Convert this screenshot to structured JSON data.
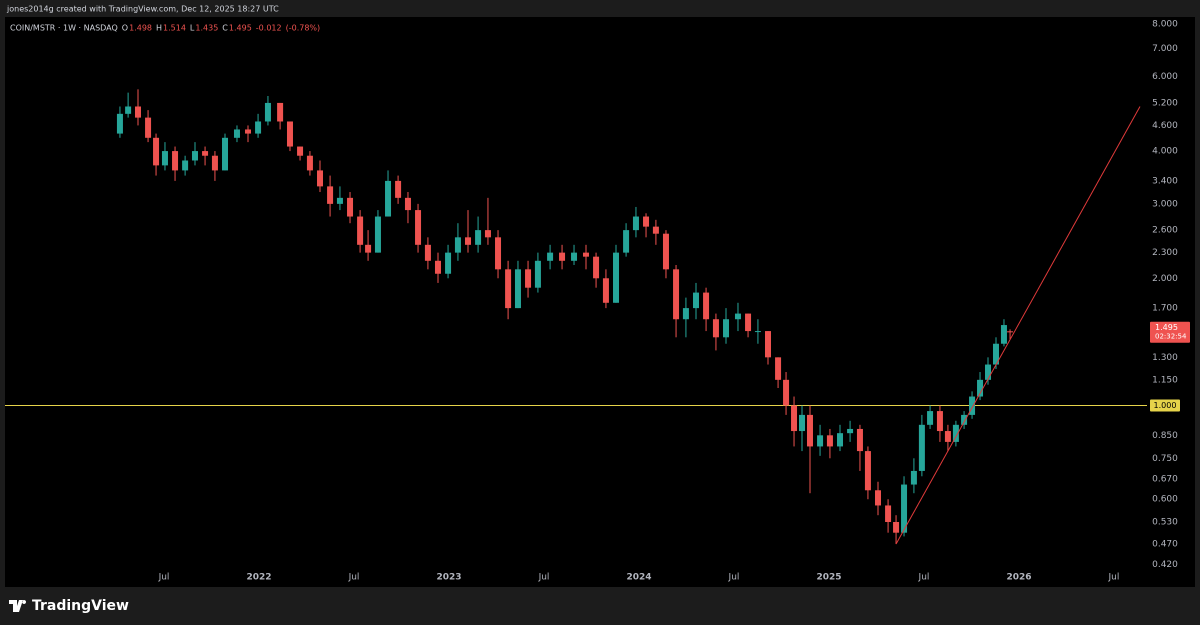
{
  "header": {
    "credit": "jones2014g created with TradingView.com, Dec 12, 2025 18:27 UTC",
    "symbol": "COIN/MSTR · 1W · NASDAQ",
    "o_label": "O",
    "h_label": "H",
    "l_label": "L",
    "c_label": "C",
    "change": "-0.012",
    "change_pct": "(-0.78%)",
    "countdown": "02:32:54"
  },
  "footer": {
    "brand": "TradingView"
  },
  "chart_data": {
    "type": "candlestick",
    "log_scale": true,
    "up_color": "#26a69a",
    "down_color": "#ef5350",
    "x": [
      2021.268,
      2021.311,
      2021.363,
      2021.416,
      2021.458,
      2021.505,
      2021.558,
      2021.611,
      2021.663,
      2021.716,
      2021.768,
      2021.821,
      2021.884,
      2021.942,
      2021.995,
      2022.047,
      2022.111,
      2022.163,
      2022.216,
      2022.268,
      2022.321,
      2022.374,
      2022.426,
      2022.479,
      2022.532,
      2022.574,
      2022.626,
      2022.679,
      2022.732,
      2022.784,
      2022.837,
      2022.889,
      2022.942,
      2022.995,
      2023.047,
      2023.1,
      2023.153,
      2023.205,
      2023.258,
      2023.311,
      2023.363,
      2023.416,
      2023.468,
      2023.532,
      2023.595,
      2023.658,
      2023.721,
      2023.774,
      2023.826,
      2023.879,
      2023.932,
      2023.984,
      2024.037,
      2024.089,
      2024.142,
      2024.195,
      2024.247,
      2024.3,
      2024.353,
      2024.405,
      2024.458,
      2024.521,
      2024.574,
      2024.626,
      2024.679,
      2024.732,
      2024.774,
      2024.816,
      2024.858,
      2024.9,
      2024.953,
      2025.005,
      2025.058,
      2025.111,
      2025.163,
      2025.205,
      2025.258,
      2025.311,
      2025.353,
      2025.395,
      2025.447,
      2025.489,
      2025.532,
      2025.584,
      2025.626,
      2025.668,
      2025.711,
      2025.753,
      2025.795,
      2025.837,
      2025.879,
      2025.921,
      2025.953
    ],
    "open": [
      4.4,
      4.9,
      5.1,
      4.8,
      4.3,
      3.7,
      4.0,
      3.6,
      3.8,
      4.0,
      3.9,
      3.6,
      4.3,
      4.5,
      4.4,
      4.7,
      5.2,
      4.7,
      4.1,
      3.9,
      3.6,
      3.3,
      3.0,
      3.1,
      2.8,
      2.4,
      2.3,
      2.8,
      3.4,
      3.1,
      2.9,
      2.4,
      2.2,
      2.05,
      2.3,
      2.5,
      2.4,
      2.6,
      2.5,
      2.1,
      1.7,
      2.1,
      1.9,
      2.2,
      2.3,
      2.2,
      2.3,
      2.25,
      2.0,
      1.75,
      2.3,
      2.6,
      2.8,
      2.65,
      2.55,
      2.1,
      1.6,
      1.7,
      1.85,
      1.6,
      1.45,
      1.6,
      1.65,
      1.5,
      1.5,
      1.3,
      1.15,
      1.0,
      0.87,
      0.95,
      0.8,
      0.85,
      0.8,
      0.86,
      0.88,
      0.78,
      0.63,
      0.58,
      0.53,
      0.5,
      0.65,
      0.7,
      0.9,
      0.97,
      0.87,
      0.82,
      0.9,
      0.95,
      1.05,
      1.15,
      1.25,
      1.4,
      1.498
    ],
    "high": [
      5.1,
      5.5,
      5.6,
      5.0,
      4.4,
      4.2,
      4.1,
      3.9,
      4.2,
      4.1,
      4.0,
      4.4,
      4.6,
      4.6,
      4.9,
      5.4,
      5.2,
      4.7,
      4.1,
      4.0,
      3.8,
      3.5,
      3.3,
      3.2,
      2.9,
      2.6,
      2.9,
      3.6,
      3.5,
      3.2,
      3.0,
      2.5,
      2.3,
      2.4,
      2.7,
      2.9,
      2.8,
      3.1,
      2.6,
      2.2,
      2.2,
      2.2,
      2.3,
      2.4,
      2.4,
      2.4,
      2.4,
      2.3,
      2.1,
      2.4,
      2.7,
      2.95,
      2.85,
      2.75,
      2.6,
      2.15,
      1.8,
      1.95,
      1.9,
      1.65,
      1.7,
      1.75,
      1.65,
      1.6,
      1.5,
      1.3,
      1.2,
      1.05,
      1.0,
      1.0,
      0.9,
      0.88,
      0.9,
      0.92,
      0.9,
      0.8,
      0.66,
      0.6,
      0.55,
      0.68,
      0.75,
      0.95,
      1.0,
      1.0,
      0.9,
      0.92,
      0.97,
      1.08,
      1.2,
      1.3,
      1.45,
      1.6,
      1.514
    ],
    "low": [
      4.3,
      4.8,
      4.6,
      4.2,
      3.5,
      3.6,
      3.4,
      3.5,
      3.7,
      3.7,
      3.4,
      3.6,
      4.2,
      4.2,
      4.3,
      4.6,
      4.5,
      4.0,
      3.8,
      3.5,
      3.2,
      2.8,
      2.9,
      2.7,
      2.3,
      2.2,
      2.3,
      2.8,
      3.0,
      2.7,
      2.3,
      2.1,
      1.95,
      2.0,
      2.2,
      2.3,
      2.3,
      2.4,
      2.0,
      1.6,
      1.7,
      1.8,
      1.85,
      2.1,
      2.1,
      2.15,
      2.1,
      1.9,
      1.7,
      1.75,
      2.25,
      2.5,
      2.5,
      2.4,
      2.0,
      1.45,
      1.45,
      1.6,
      1.5,
      1.35,
      1.4,
      1.5,
      1.45,
      1.4,
      1.25,
      1.1,
      0.95,
      0.8,
      0.78,
      0.62,
      0.76,
      0.75,
      0.78,
      0.82,
      0.7,
      0.6,
      0.55,
      0.5,
      0.47,
      0.49,
      0.62,
      0.68,
      0.88,
      0.82,
      0.78,
      0.8,
      0.88,
      0.93,
      1.03,
      1.12,
      1.22,
      1.38,
      1.435
    ],
    "close": [
      4.9,
      5.1,
      4.8,
      4.3,
      3.7,
      4.0,
      3.6,
      3.8,
      4.0,
      3.9,
      3.6,
      4.3,
      4.5,
      4.4,
      4.7,
      5.2,
      4.7,
      4.1,
      3.9,
      3.6,
      3.3,
      3.0,
      3.1,
      2.8,
      2.4,
      2.3,
      2.8,
      3.4,
      3.1,
      2.9,
      2.4,
      2.2,
      2.05,
      2.3,
      2.5,
      2.4,
      2.6,
      2.5,
      2.1,
      1.7,
      2.1,
      1.9,
      2.2,
      2.3,
      2.2,
      2.3,
      2.25,
      2.0,
      1.75,
      2.3,
      2.6,
      2.8,
      2.65,
      2.55,
      2.1,
      1.6,
      1.7,
      1.85,
      1.6,
      1.45,
      1.6,
      1.65,
      1.5,
      1.5,
      1.3,
      1.15,
      1.0,
      0.87,
      0.95,
      0.8,
      0.85,
      0.8,
      0.86,
      0.88,
      0.78,
      0.63,
      0.58,
      0.53,
      0.5,
      0.65,
      0.7,
      0.9,
      0.97,
      0.87,
      0.82,
      0.9,
      0.95,
      1.05,
      1.15,
      1.25,
      1.4,
      1.55,
      1.495
    ],
    "xlim": [
      2020.663,
      2026.637
    ],
    "xticks": [
      {
        "value": 2021.5,
        "label": "Jul"
      },
      2022,
      {
        "value": 2022.5,
        "label": "Jul"
      },
      2023,
      {
        "value": 2023.5,
        "label": "Jul"
      },
      2024,
      {
        "value": 2024.5,
        "label": "Jul"
      },
      2025,
      {
        "value": 2025.5,
        "label": "Jul"
      },
      2026,
      {
        "value": 2026.5,
        "label": "Jul"
      }
    ],
    "ylim": [
      0.376,
      8.26
    ],
    "yticks": [
      {
        "value": 8,
        "label": "8.000"
      },
      {
        "value": 7,
        "label": "7.000"
      },
      {
        "value": 6,
        "label": "6.000"
      },
      {
        "value": 5.2,
        "label": "5.200"
      },
      {
        "value": 4.6,
        "label": "4.600"
      },
      {
        "value": 4,
        "label": "4.000"
      },
      {
        "value": 3.4,
        "label": "3.400"
      },
      {
        "value": 3,
        "label": "3.000"
      },
      {
        "value": 2.6,
        "label": "2.600"
      },
      {
        "value": 2.3,
        "label": "2.300"
      },
      {
        "value": 2,
        "label": "2.000"
      },
      {
        "value": 1.7,
        "label": "1.700"
      },
      {
        "value": 1.3,
        "label": "1.300"
      },
      {
        "value": 1.15,
        "label": "1.150"
      },
      {
        "value": 0.85,
        "label": "0.850"
      },
      {
        "value": 0.75,
        "label": "0.750"
      },
      {
        "value": 0.67,
        "label": "0.670"
      },
      {
        "value": 0.6,
        "label": "0.600"
      },
      {
        "value": 0.53,
        "label": "0.530"
      },
      {
        "value": 0.47,
        "label": "0.470"
      },
      {
        "value": 0.42,
        "label": "0.420"
      }
    ],
    "hline": {
      "value": 1,
      "label": "1.000",
      "color": "#e6d34a"
    },
    "trendline": {
      "x": [
        2025.353,
        2026.637
      ],
      "y": [
        0.47,
        5.1
      ],
      "color": "#e03a3a"
    }
  }
}
